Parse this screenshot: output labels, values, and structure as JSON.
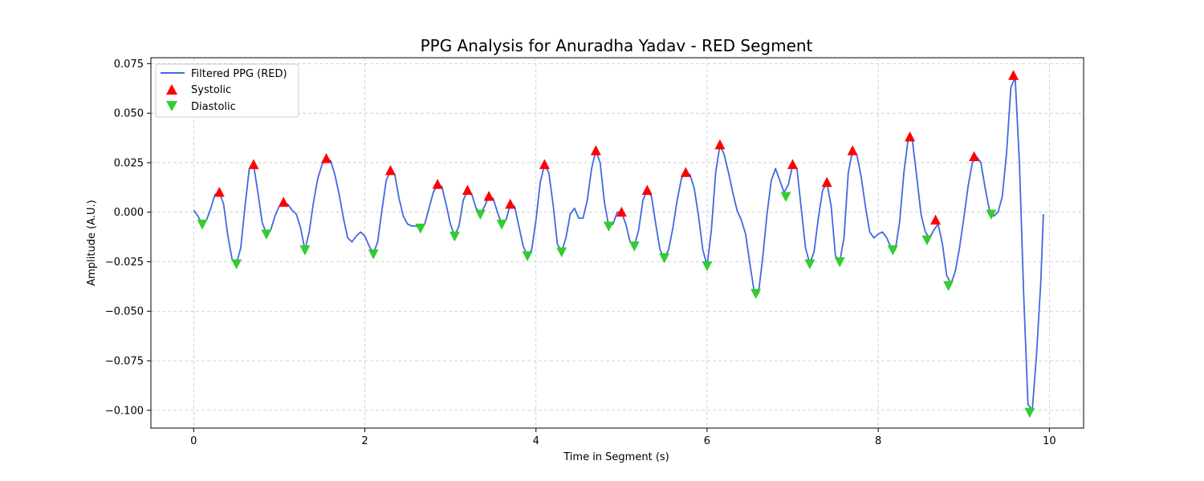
{
  "chart_data": {
    "type": "line",
    "title": "PPG Analysis for Anuradha Yadav - RED Segment",
    "xlabel": "Time in Segment (s)",
    "ylabel": "Amplitude (A.U.)",
    "xlim": [
      -0.5,
      10.4
    ],
    "ylim": [
      -0.109,
      0.078
    ],
    "x_ticks": [
      0,
      2,
      4,
      6,
      8,
      10
    ],
    "x_tick_labels": [
      "0",
      "2",
      "4",
      "6",
      "8",
      "10"
    ],
    "y_ticks": [
      -0.1,
      -0.075,
      -0.05,
      -0.025,
      0.0,
      0.025,
      0.05,
      0.075
    ],
    "y_tick_labels": [
      "−0.100",
      "−0.075",
      "−0.050",
      "−0.025",
      "0.000",
      "0.025",
      "0.050",
      "0.075"
    ],
    "grid": true,
    "legend_position": "top-left",
    "series": [
      {
        "name": "Filtered PPG (RED)",
        "kind": "line",
        "color": "#4169e1",
        "points": [
          [
            0.0,
            0.001
          ],
          [
            0.05,
            -0.002
          ],
          [
            0.1,
            -0.006
          ],
          [
            0.15,
            -0.004
          ],
          [
            0.2,
            0.002
          ],
          [
            0.25,
            0.009
          ],
          [
            0.3,
            0.01
          ],
          [
            0.35,
            0.004
          ],
          [
            0.4,
            -0.012
          ],
          [
            0.45,
            -0.024
          ],
          [
            0.5,
            -0.026
          ],
          [
            0.55,
            -0.018
          ],
          [
            0.6,
            0.003
          ],
          [
            0.65,
            0.022
          ],
          [
            0.7,
            0.024
          ],
          [
            0.75,
            0.01
          ],
          [
            0.8,
            -0.005
          ],
          [
            0.85,
            -0.011
          ],
          [
            0.9,
            -0.009
          ],
          [
            0.95,
            -0.002
          ],
          [
            1.0,
            0.003
          ],
          [
            1.05,
            0.005
          ],
          [
            1.1,
            0.004
          ],
          [
            1.15,
            0.001
          ],
          [
            1.2,
            -0.001
          ],
          [
            1.25,
            -0.008
          ],
          [
            1.3,
            -0.019
          ],
          [
            1.35,
            -0.01
          ],
          [
            1.4,
            0.005
          ],
          [
            1.45,
            0.017
          ],
          [
            1.5,
            0.024
          ],
          [
            1.55,
            0.027
          ],
          [
            1.6,
            0.026
          ],
          [
            1.65,
            0.019
          ],
          [
            1.7,
            0.009
          ],
          [
            1.75,
            -0.003
          ],
          [
            1.8,
            -0.013
          ],
          [
            1.85,
            -0.015
          ],
          [
            1.9,
            -0.012
          ],
          [
            1.95,
            -0.01
          ],
          [
            2.0,
            -0.012
          ],
          [
            2.05,
            -0.017
          ],
          [
            2.1,
            -0.021
          ],
          [
            2.15,
            -0.015
          ],
          [
            2.2,
            0.001
          ],
          [
            2.25,
            0.016
          ],
          [
            2.3,
            0.021
          ],
          [
            2.35,
            0.019
          ],
          [
            2.4,
            0.007
          ],
          [
            2.45,
            -0.002
          ],
          [
            2.5,
            -0.006
          ],
          [
            2.55,
            -0.007
          ],
          [
            2.6,
            -0.007
          ],
          [
            2.65,
            -0.008
          ],
          [
            2.7,
            -0.006
          ],
          [
            2.75,
            0.002
          ],
          [
            2.8,
            0.01
          ],
          [
            2.85,
            0.014
          ],
          [
            2.9,
            0.013
          ],
          [
            2.95,
            0.004
          ],
          [
            3.0,
            -0.006
          ],
          [
            3.05,
            -0.012
          ],
          [
            3.1,
            -0.007
          ],
          [
            3.15,
            0.006
          ],
          [
            3.2,
            0.011
          ],
          [
            3.25,
            0.009
          ],
          [
            3.3,
            0.002
          ],
          [
            3.35,
            -0.001
          ],
          [
            3.4,
            0.003
          ],
          [
            3.45,
            0.008
          ],
          [
            3.5,
            0.007
          ],
          [
            3.55,
            0.0
          ],
          [
            3.6,
            -0.006
          ],
          [
            3.65,
            -0.004
          ],
          [
            3.7,
            0.004
          ],
          [
            3.75,
            0.003
          ],
          [
            3.8,
            -0.007
          ],
          [
            3.85,
            -0.017
          ],
          [
            3.9,
            -0.022
          ],
          [
            3.95,
            -0.019
          ],
          [
            4.0,
            -0.004
          ],
          [
            4.05,
            0.015
          ],
          [
            4.1,
            0.024
          ],
          [
            4.15,
            0.02
          ],
          [
            4.2,
            0.004
          ],
          [
            4.25,
            -0.016
          ],
          [
            4.3,
            -0.02
          ],
          [
            4.35,
            -0.013
          ],
          [
            4.4,
            -0.001
          ],
          [
            4.45,
            0.002
          ],
          [
            4.5,
            -0.003
          ],
          [
            4.55,
            -0.003
          ],
          [
            4.6,
            0.006
          ],
          [
            4.65,
            0.022
          ],
          [
            4.7,
            0.031
          ],
          [
            4.75,
            0.025
          ],
          [
            4.8,
            0.005
          ],
          [
            4.85,
            -0.007
          ],
          [
            4.9,
            -0.006
          ],
          [
            4.95,
            0.0
          ],
          [
            5.0,
            0.0
          ],
          [
            5.05,
            -0.006
          ],
          [
            5.1,
            -0.015
          ],
          [
            5.15,
            -0.017
          ],
          [
            5.2,
            -0.009
          ],
          [
            5.25,
            0.006
          ],
          [
            5.3,
            0.011
          ],
          [
            5.35,
            0.008
          ],
          [
            5.4,
            -0.006
          ],
          [
            5.45,
            -0.019
          ],
          [
            5.5,
            -0.023
          ],
          [
            5.55,
            -0.019
          ],
          [
            5.6,
            -0.008
          ],
          [
            5.65,
            0.006
          ],
          [
            5.7,
            0.017
          ],
          [
            5.75,
            0.02
          ],
          [
            5.8,
            0.019
          ],
          [
            5.85,
            0.012
          ],
          [
            5.9,
            -0.002
          ],
          [
            5.95,
            -0.019
          ],
          [
            6.0,
            -0.027
          ],
          [
            6.05,
            -0.009
          ],
          [
            6.1,
            0.02
          ],
          [
            6.15,
            0.034
          ],
          [
            6.2,
            0.029
          ],
          [
            6.25,
            0.02
          ],
          [
            6.3,
            0.01
          ],
          [
            6.35,
            0.001
          ],
          [
            6.4,
            -0.004
          ],
          [
            6.45,
            -0.011
          ],
          [
            6.5,
            -0.026
          ],
          [
            6.55,
            -0.04
          ],
          [
            6.6,
            -0.041
          ],
          [
            6.65,
            -0.023
          ],
          [
            6.7,
            -0.001
          ],
          [
            6.75,
            0.016
          ],
          [
            6.8,
            0.022
          ],
          [
            6.85,
            0.016
          ],
          [
            6.9,
            0.01
          ],
          [
            6.95,
            0.014
          ],
          [
            7.0,
            0.024
          ],
          [
            7.05,
            0.022
          ],
          [
            7.1,
            0.002
          ],
          [
            7.15,
            -0.018
          ],
          [
            7.2,
            -0.026
          ],
          [
            7.25,
            -0.02
          ],
          [
            7.3,
            -0.003
          ],
          [
            7.35,
            0.011
          ],
          [
            7.4,
            0.015
          ],
          [
            7.45,
            0.003
          ],
          [
            7.5,
            -0.022
          ],
          [
            7.55,
            -0.025
          ],
          [
            7.6,
            -0.013
          ],
          [
            7.65,
            0.02
          ],
          [
            7.7,
            0.031
          ],
          [
            7.75,
            0.029
          ],
          [
            7.8,
            0.018
          ],
          [
            7.85,
            0.003
          ],
          [
            7.9,
            -0.01
          ],
          [
            7.95,
            -0.013
          ],
          [
            8.0,
            -0.011
          ],
          [
            8.05,
            -0.01
          ],
          [
            8.1,
            -0.013
          ],
          [
            8.15,
            -0.018
          ],
          [
            8.2,
            -0.019
          ],
          [
            8.25,
            -0.005
          ],
          [
            8.3,
            0.02
          ],
          [
            8.35,
            0.037
          ],
          [
            8.4,
            0.036
          ],
          [
            8.45,
            0.018
          ],
          [
            8.5,
            -0.001
          ],
          [
            8.55,
            -0.01
          ],
          [
            8.6,
            -0.013
          ],
          [
            8.65,
            -0.009
          ],
          [
            8.7,
            -0.006
          ],
          [
            8.75,
            -0.016
          ],
          [
            8.8,
            -0.032
          ],
          [
            8.85,
            -0.036
          ],
          [
            8.9,
            -0.03
          ],
          [
            8.95,
            -0.018
          ],
          [
            9.0,
            -0.003
          ],
          [
            9.05,
            0.013
          ],
          [
            9.1,
            0.025
          ],
          [
            9.15,
            0.028
          ],
          [
            9.2,
            0.025
          ],
          [
            9.25,
            0.012
          ],
          [
            9.3,
            0.001
          ],
          [
            9.35,
            -0.002
          ],
          [
            9.4,
            0.0
          ],
          [
            9.45,
            0.008
          ],
          [
            9.5,
            0.03
          ],
          [
            9.55,
            0.063
          ],
          [
            9.6,
            0.068
          ],
          [
            9.65,
            0.025
          ],
          [
            9.7,
            -0.042
          ],
          [
            9.75,
            -0.097
          ],
          [
            9.8,
            -0.1
          ],
          [
            9.85,
            -0.072
          ],
          [
            9.9,
            -0.035
          ],
          [
            9.93,
            -0.001
          ]
        ]
      },
      {
        "name": "Systolic",
        "kind": "marker",
        "marker": "triangle-up",
        "color": "#ff0000",
        "points": [
          [
            0.3,
            0.01
          ],
          [
            0.7,
            0.024
          ],
          [
            1.05,
            0.005
          ],
          [
            1.55,
            0.027
          ],
          [
            2.3,
            0.021
          ],
          [
            2.85,
            0.014
          ],
          [
            3.2,
            0.011
          ],
          [
            3.45,
            0.008
          ],
          [
            3.7,
            0.004
          ],
          [
            4.1,
            0.024
          ],
          [
            4.7,
            0.031
          ],
          [
            5.0,
            0.0
          ],
          [
            5.3,
            0.011
          ],
          [
            5.75,
            0.02
          ],
          [
            6.15,
            0.034
          ],
          [
            7.0,
            0.024
          ],
          [
            7.4,
            0.015
          ],
          [
            7.7,
            0.031
          ],
          [
            8.37,
            0.038
          ],
          [
            8.67,
            -0.004
          ],
          [
            9.12,
            0.028
          ],
          [
            9.58,
            0.069
          ]
        ]
      },
      {
        "name": "Diastolic",
        "kind": "marker",
        "marker": "triangle-down",
        "color": "#32cd32",
        "points": [
          [
            0.1,
            -0.006
          ],
          [
            0.5,
            -0.026
          ],
          [
            0.85,
            -0.011
          ],
          [
            1.3,
            -0.019
          ],
          [
            2.1,
            -0.021
          ],
          [
            2.65,
            -0.008
          ],
          [
            3.05,
            -0.012
          ],
          [
            3.35,
            -0.001
          ],
          [
            3.6,
            -0.006
          ],
          [
            3.9,
            -0.022
          ],
          [
            4.3,
            -0.02
          ],
          [
            4.85,
            -0.007
          ],
          [
            5.15,
            -0.017
          ],
          [
            5.5,
            -0.023
          ],
          [
            6.0,
            -0.027
          ],
          [
            6.57,
            -0.041
          ],
          [
            6.92,
            0.008
          ],
          [
            7.2,
            -0.026
          ],
          [
            7.55,
            -0.025
          ],
          [
            8.17,
            -0.019
          ],
          [
            8.57,
            -0.014
          ],
          [
            8.82,
            -0.037
          ],
          [
            9.32,
            -0.001
          ],
          [
            9.77,
            -0.101
          ]
        ]
      }
    ]
  }
}
